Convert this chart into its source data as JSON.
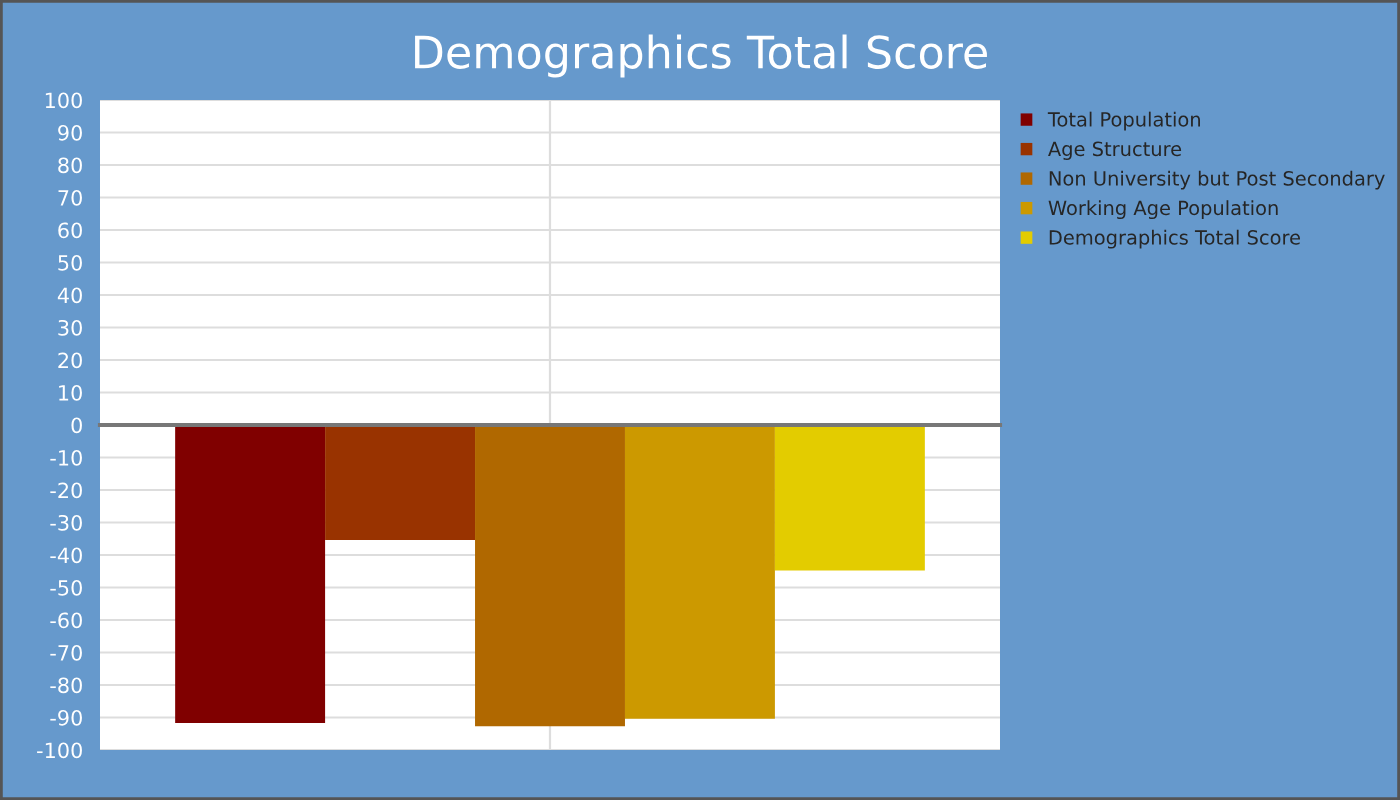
{
  "chart_data": {
    "type": "bar",
    "title": "Demographics Total Score",
    "categories": [
      null
    ],
    "series": [
      {
        "name": "Total Population",
        "color": "#800000",
        "values": [
          -91.7
        ]
      },
      {
        "name": "Age Structure",
        "color": "#993300",
        "values": [
          -35.4
        ]
      },
      {
        "name": "Non University but Post Secondary",
        "color": "#b06800",
        "values": [
          -92.7
        ]
      },
      {
        "name": "Working Age Population",
        "color": "#cc9900",
        "values": [
          -90.4
        ]
      },
      {
        "name": "Demographics Total Score",
        "color": "#e3cc00",
        "values": [
          -44.8
        ]
      }
    ],
    "ylim": [
      -100,
      100
    ],
    "yticks": [
      -100,
      -90,
      -80,
      -70,
      -60,
      -50,
      -40,
      -30,
      -20,
      -10,
      0,
      10,
      20,
      30,
      40,
      50,
      60,
      70,
      80,
      90,
      100
    ],
    "grid": true,
    "legend": "top right"
  }
}
